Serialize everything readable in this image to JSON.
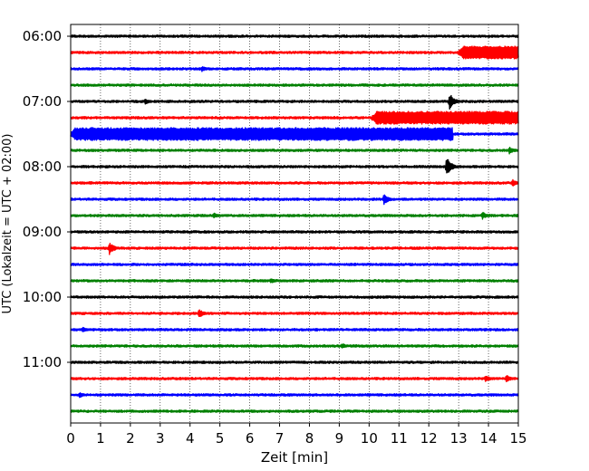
{
  "chart_data": {
    "type": "line",
    "title": "",
    "xlabel": "Zeit  [min]",
    "ylabel": "UTC (Lokalzeit = UTC + 02:00)",
    "xlim": [
      0,
      15
    ],
    "x_ticks": [
      "0",
      "1",
      "2",
      "3",
      "4",
      "5",
      "6",
      "7",
      "8",
      "9",
      "10",
      "11",
      "12",
      "13",
      "14",
      "15"
    ],
    "y_tick_labels": [
      "06:00",
      "07:00",
      "08:00",
      "09:00",
      "10:00",
      "11:00"
    ],
    "trace_interval_min": 15,
    "grid": "vertical-dotted",
    "line_colors": [
      "#000000",
      "#ff0000",
      "#0000ff",
      "#008000"
    ],
    "series": [
      {
        "start": "06:00",
        "base_amp": 0.9,
        "events": []
      },
      {
        "start": "06:15",
        "base_amp": 0.9,
        "events": [
          {
            "from": 13.0,
            "to": 15.0,
            "amp": 7
          }
        ]
      },
      {
        "start": "06:30",
        "base_amp": 0.9,
        "events": [
          {
            "at": 4.4,
            "amp": 3
          }
        ]
      },
      {
        "start": "06:45",
        "base_amp": 0.9,
        "events": []
      },
      {
        "start": "07:00",
        "base_amp": 0.9,
        "events": [
          {
            "at": 2.5,
            "amp": 3
          },
          {
            "at": 12.7,
            "amp": 9
          }
        ]
      },
      {
        "start": "07:15",
        "base_amp": 0.9,
        "events": [
          {
            "from": 10.1,
            "to": 15.0,
            "amp": 7
          }
        ]
      },
      {
        "start": "07:30",
        "base_amp": 0.9,
        "events": [
          {
            "from": 0.0,
            "to": 12.8,
            "amp": 7
          }
        ]
      },
      {
        "start": "07:45",
        "base_amp": 0.9,
        "events": [
          {
            "at": 14.7,
            "amp": 4
          }
        ]
      },
      {
        "start": "08:00",
        "base_amp": 0.9,
        "events": [
          {
            "at": 12.6,
            "amp": 11
          }
        ]
      },
      {
        "start": "08:15",
        "base_amp": 0.9,
        "events": [
          {
            "at": 14.8,
            "amp": 4
          }
        ]
      },
      {
        "start": "08:30",
        "base_amp": 0.9,
        "events": [
          {
            "at": 10.5,
            "amp": 6
          }
        ]
      },
      {
        "start": "08:45",
        "base_amp": 0.9,
        "events": [
          {
            "at": 4.8,
            "amp": 3
          },
          {
            "at": 13.8,
            "amp": 4
          }
        ]
      },
      {
        "start": "09:00",
        "base_amp": 0.9,
        "events": []
      },
      {
        "start": "09:15",
        "base_amp": 0.9,
        "events": [
          {
            "at": 1.3,
            "amp": 7
          }
        ]
      },
      {
        "start": "09:30",
        "base_amp": 0.9,
        "events": []
      },
      {
        "start": "09:45",
        "base_amp": 0.9,
        "events": [
          {
            "at": 6.7,
            "amp": 3
          }
        ]
      },
      {
        "start": "10:00",
        "base_amp": 0.9,
        "events": []
      },
      {
        "start": "10:15",
        "base_amp": 0.9,
        "events": [
          {
            "at": 4.3,
            "amp": 5
          }
        ]
      },
      {
        "start": "10:30",
        "base_amp": 0.9,
        "events": [
          {
            "at": 0.4,
            "amp": 3
          }
        ]
      },
      {
        "start": "10:45",
        "base_amp": 0.9,
        "events": [
          {
            "at": 9.1,
            "amp": 3
          }
        ]
      },
      {
        "start": "11:00",
        "base_amp": 0.9,
        "events": []
      },
      {
        "start": "11:15",
        "base_amp": 0.9,
        "events": [
          {
            "at": 13.9,
            "amp": 4
          },
          {
            "at": 14.6,
            "amp": 4
          }
        ]
      },
      {
        "start": "11:30",
        "base_amp": 0.9,
        "events": [
          {
            "at": 0.3,
            "amp": 3
          }
        ]
      },
      {
        "start": "11:45",
        "base_amp": 0.9,
        "events": []
      }
    ]
  }
}
